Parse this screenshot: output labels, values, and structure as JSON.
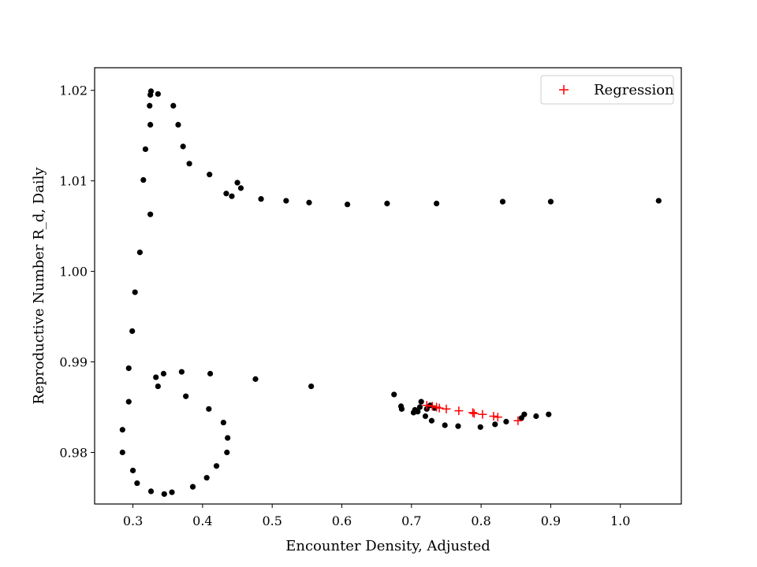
{
  "chart_data": {
    "type": "scatter",
    "title": "",
    "xlabel": "Encounter Density, Adjusted",
    "ylabel": "Reproductive Number R_d, Daily",
    "xlim": [
      0.245,
      1.0875
    ],
    "ylim": [
      0.9743,
      1.0225
    ],
    "xticks": [
      0.3,
      0.4,
      0.5,
      0.6,
      0.7,
      0.8,
      0.9,
      1.0
    ],
    "xtick_labels": [
      "0.3",
      "0.4",
      "0.5",
      "0.6",
      "0.7",
      "0.8",
      "0.9",
      "1.0"
    ],
    "yticks": [
      0.98,
      0.99,
      1.0,
      1.01,
      1.02
    ],
    "ytick_labels": [
      "0.98",
      "0.99",
      "1.00",
      "1.01",
      "1.02"
    ],
    "grid": false,
    "legend": {
      "position": "top-right",
      "entries": [
        "Regression"
      ]
    },
    "series": [
      {
        "marker": "dot",
        "color": "#000000",
        "points": [
          [
            0.326,
            1.0199
          ],
          [
            0.325,
            1.0195
          ],
          [
            0.336,
            1.0196
          ],
          [
            0.324,
            1.0183
          ],
          [
            0.358,
            1.0183
          ],
          [
            0.325,
            1.0162
          ],
          [
            0.365,
            1.0162
          ],
          [
            0.318,
            1.0135
          ],
          [
            0.372,
            1.0138
          ],
          [
            0.381,
            1.0119
          ],
          [
            0.41,
            1.0107
          ],
          [
            0.315,
            1.0101
          ],
          [
            0.45,
            1.0098
          ],
          [
            0.455,
            1.0092
          ],
          [
            0.434,
            1.0086
          ],
          [
            0.442,
            1.0083
          ],
          [
            0.484,
            1.008
          ],
          [
            0.52,
            1.0078
          ],
          [
            0.553,
            1.0076
          ],
          [
            0.608,
            1.0074
          ],
          [
            0.665,
            1.0075
          ],
          [
            0.736,
            1.0075
          ],
          [
            0.831,
            1.0077
          ],
          [
            0.9,
            1.0077
          ],
          [
            1.055,
            1.0078
          ],
          [
            0.325,
            1.0063
          ],
          [
            0.31,
            1.0021
          ],
          [
            0.303,
            0.9977
          ],
          [
            0.299,
            0.9934
          ],
          [
            0.294,
            0.9893
          ],
          [
            0.294,
            0.9856
          ],
          [
            0.285,
            0.9825
          ],
          [
            0.285,
            0.98
          ],
          [
            0.3,
            0.978
          ],
          [
            0.306,
            0.9766
          ],
          [
            0.326,
            0.9757
          ],
          [
            0.345,
            0.9754
          ],
          [
            0.356,
            0.9756
          ],
          [
            0.386,
            0.9762
          ],
          [
            0.406,
            0.9772
          ],
          [
            0.42,
            0.9785
          ],
          [
            0.435,
            0.98
          ],
          [
            0.436,
            0.9816
          ],
          [
            0.43,
            0.9833
          ],
          [
            0.409,
            0.9848
          ],
          [
            0.376,
            0.9862
          ],
          [
            0.336,
            0.9873
          ],
          [
            0.333,
            0.9883
          ],
          [
            0.344,
            0.9887
          ],
          [
            0.37,
            0.9889
          ],
          [
            0.411,
            0.9887
          ],
          [
            0.476,
            0.9881
          ],
          [
            0.556,
            0.9873
          ],
          [
            0.675,
            0.9864
          ],
          [
            0.685,
            0.9851
          ],
          [
            0.686,
            0.9848
          ],
          [
            0.714,
            0.9856
          ],
          [
            0.705,
            0.9847
          ],
          [
            0.712,
            0.985
          ],
          [
            0.703,
            0.9844
          ],
          [
            0.709,
            0.9845
          ],
          [
            0.722,
            0.9848
          ],
          [
            0.72,
            0.984
          ],
          [
            0.729,
            0.9835
          ],
          [
            0.748,
            0.983
          ],
          [
            0.767,
            0.9829
          ],
          [
            0.799,
            0.9828
          ],
          [
            0.82,
            0.9831
          ],
          [
            0.836,
            0.9834
          ],
          [
            0.858,
            0.9838
          ],
          [
            0.862,
            0.9842
          ],
          [
            0.879,
            0.984
          ],
          [
            0.897,
            0.9842
          ],
          [
            0.733,
            0.9849
          ],
          [
            0.727,
            0.9852
          ]
        ]
      },
      {
        "name": "Regression",
        "marker": "plus",
        "color": "#ff0000",
        "points": [
          [
            0.722,
            0.9852
          ],
          [
            0.73,
            0.9851
          ],
          [
            0.736,
            0.985
          ],
          [
            0.74,
            0.9849
          ],
          [
            0.75,
            0.9848
          ],
          [
            0.768,
            0.9846
          ],
          [
            0.788,
            0.9844
          ],
          [
            0.79,
            0.9843
          ],
          [
            0.802,
            0.9842
          ],
          [
            0.818,
            0.984
          ],
          [
            0.824,
            0.9839
          ],
          [
            0.853,
            0.9835
          ]
        ]
      }
    ]
  }
}
